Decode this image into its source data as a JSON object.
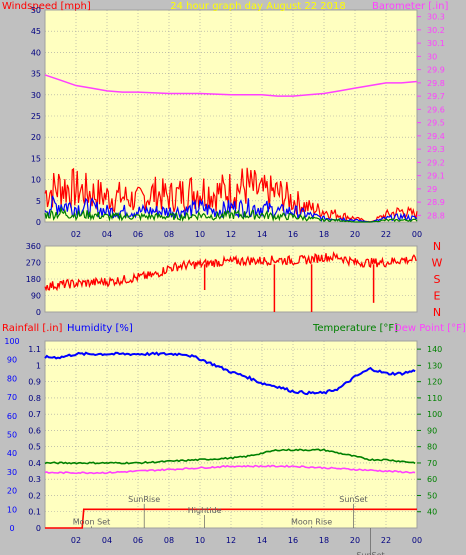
{
  "colors": {
    "background": "#c0c0c0",
    "plot_bg": "#ffffc0",
    "grid": "#a0a0a0",
    "wind_gust": "#ff0000",
    "wind_avg": "#0000ff",
    "wind_low": "#008000",
    "barometer": "#ff40ff",
    "direction": "#ff0000",
    "humidity": "#0000ff",
    "temperature": "#008000",
    "dewpoint": "#ff40ff",
    "rainfall": "#ff0000",
    "title": "#ffff00",
    "annotation": "#606060"
  },
  "chart_data": [
    {
      "type": "line",
      "title": "24 hour graph day August 22 2018",
      "left_label": "Windspeed [mph]",
      "right_label": "Barometer [.in]",
      "x_ticks": [
        "02",
        "04",
        "06",
        "08",
        "10",
        "12",
        "14",
        "16",
        "18",
        "20",
        "22",
        "00"
      ],
      "x_range": [
        0,
        24
      ],
      "y_left": {
        "range": [
          0,
          50
        ],
        "ticks": [
          "0",
          "5",
          "10",
          "15",
          "20",
          "25",
          "30",
          "35",
          "40",
          "45",
          "50"
        ]
      },
      "y_right": {
        "range": [
          28.75,
          30.35
        ],
        "ticks": [
          "28.8",
          "28.9",
          "29",
          "29.1",
          "29.2",
          "29.3",
          "29.4",
          "29.5",
          "29.6",
          "29.7",
          "29.8",
          "29.9",
          "30",
          "30.1",
          "30.2",
          "30.3"
        ]
      },
      "series": [
        {
          "role": "barometer",
          "axis": "right",
          "x": [
            0,
            1,
            2,
            3,
            4,
            5,
            6,
            8,
            10,
            12,
            14,
            15,
            16,
            17,
            18,
            19,
            20,
            21,
            22,
            23,
            24
          ],
          "y": [
            29.86,
            29.82,
            29.78,
            29.76,
            29.74,
            29.73,
            29.73,
            29.72,
            29.72,
            29.71,
            29.71,
            29.7,
            29.7,
            29.71,
            29.72,
            29.74,
            29.76,
            29.78,
            29.8,
            29.8,
            29.81
          ]
        },
        {
          "role": "wind_gust",
          "axis": "left",
          "x": [
            0,
            1,
            2,
            3,
            4,
            5,
            6,
            7,
            8,
            9,
            10,
            11,
            12,
            13,
            14,
            15,
            16,
            17,
            18,
            19,
            20,
            21,
            22,
            23,
            24
          ],
          "y": [
            8,
            10,
            9,
            8,
            7,
            7,
            6,
            8,
            7,
            8,
            9,
            8,
            9,
            10,
            8,
            8,
            6,
            4,
            3,
            2,
            1,
            0,
            2,
            3,
            2
          ]
        },
        {
          "role": "wind_avg",
          "axis": "left",
          "x": [
            0,
            1,
            2,
            3,
            4,
            5,
            6,
            7,
            8,
            9,
            10,
            11,
            12,
            13,
            14,
            15,
            16,
            17,
            18,
            19,
            20,
            21,
            22,
            23,
            24
          ],
          "y": [
            4,
            5,
            4,
            4,
            3,
            3,
            3,
            3,
            3,
            3,
            4,
            3,
            4,
            4,
            4,
            3,
            3,
            2,
            1,
            1,
            0.5,
            0,
            1,
            1.5,
            1
          ]
        },
        {
          "role": "wind_low",
          "axis": "left",
          "x": [
            0,
            1,
            2,
            3,
            4,
            5,
            6,
            7,
            8,
            9,
            10,
            11,
            12,
            13,
            14,
            15,
            16,
            17,
            18,
            19,
            20,
            21,
            22,
            23,
            24
          ],
          "y": [
            2,
            2.5,
            2,
            2,
            1.5,
            1.5,
            1.5,
            1.5,
            1.5,
            1.5,
            2,
            1.5,
            2,
            2,
            2,
            1.5,
            1.5,
            1,
            0.5,
            0.5,
            0,
            0,
            0.5,
            0.5,
            0.5
          ]
        }
      ]
    },
    {
      "type": "line",
      "right_label_letters": [
        "N",
        "W",
        "S",
        "E",
        "N"
      ],
      "x_range": [
        0,
        24
      ],
      "y_left": {
        "range": [
          0,
          360
        ],
        "ticks": [
          "0",
          "90",
          "180",
          "270",
          "360"
        ]
      },
      "series": [
        {
          "role": "direction",
          "x": [
            0,
            1,
            2,
            3,
            4,
            5,
            6,
            7,
            8,
            9,
            10,
            11,
            12,
            13,
            14,
            15,
            16,
            17,
            18,
            19,
            20,
            21,
            22,
            23,
            24
          ],
          "y": [
            140,
            150,
            155,
            160,
            165,
            175,
            190,
            200,
            240,
            255,
            260,
            270,
            275,
            280,
            280,
            285,
            280,
            285,
            300,
            300,
            270,
            270,
            270,
            285,
            285
          ]
        }
      ],
      "spikes": [
        {
          "x": 10.3,
          "y": 120
        },
        {
          "x": 14.8,
          "y": 0
        },
        {
          "x": 17.2,
          "y": 0
        },
        {
          "x": 21.2,
          "y": 50
        }
      ]
    },
    {
      "type": "line",
      "labels": {
        "rainfall": "Rainfall [.in]",
        "humidity": "Humidity [%]",
        "temperature": "Temperature [°F]",
        "dewpoint": "Dew Point [°F]"
      },
      "x_ticks": [
        "02",
        "04",
        "06",
        "08",
        "10",
        "12",
        "14",
        "16",
        "18",
        "20",
        "22",
        "00"
      ],
      "x_range": [
        0,
        24
      ],
      "y_rain": {
        "range": [
          0,
          100
        ],
        "ticks": [
          "0",
          "10",
          "20",
          "30",
          "40",
          "50",
          "60",
          "70",
          "80",
          "90",
          "100"
        ]
      },
      "y_humidity": {
        "range": [
          0,
          1.15
        ],
        "ticks": [
          "0",
          "0.1",
          "0.2",
          "0.3",
          "0.4",
          "0.5",
          "0.6",
          "0.7",
          "0.8",
          "0.9",
          "1",
          "1.1"
        ]
      },
      "y_temp": {
        "range": [
          30,
          145
        ],
        "ticks": [
          "40",
          "50",
          "60",
          "70",
          "80",
          "90",
          "100",
          "110",
          "120",
          "130",
          "140"
        ]
      },
      "series": [
        {
          "role": "humidity",
          "axis": "temp",
          "x": [
            0,
            1,
            2,
            4,
            6,
            8,
            9,
            10,
            11,
            12,
            13,
            14,
            15,
            16,
            17,
            18,
            19,
            20,
            21,
            22,
            23,
            24
          ],
          "y": [
            135,
            135,
            137,
            137,
            137,
            137,
            137,
            134,
            130,
            126,
            123,
            119,
            117,
            114,
            113,
            113,
            116,
            123,
            128,
            125,
            125,
            127
          ]
        },
        {
          "role": "temperature",
          "axis": "temp",
          "x": [
            0,
            2,
            4,
            6,
            8,
            10,
            12,
            13,
            14,
            15,
            16,
            17,
            18,
            19,
            20,
            21,
            22,
            23,
            24
          ],
          "y": [
            70,
            70,
            70,
            70,
            71,
            72,
            73,
            74,
            76,
            78,
            78,
            78,
            78,
            76,
            74,
            72,
            72,
            71,
            70
          ]
        },
        {
          "role": "dewpoint",
          "axis": "temp",
          "x": [
            0,
            2,
            4,
            6,
            8,
            10,
            12,
            14,
            16,
            18,
            20,
            22,
            24
          ],
          "y": [
            64,
            64,
            64,
            65,
            66,
            67,
            68,
            68,
            68,
            67,
            66,
            65,
            64
          ]
        },
        {
          "role": "rainfall",
          "axis": "rain",
          "x": [
            0,
            2.4,
            2.5,
            3,
            24
          ],
          "y": [
            0,
            0,
            10,
            10,
            10
          ]
        }
      ],
      "annotations": [
        {
          "text": "SunRise",
          "x": 6.4,
          "level": 14
        },
        {
          "text": "Hightide",
          "x": 10.3,
          "level": 8
        },
        {
          "text": "SunSet",
          "x": 19.9,
          "level": 14
        },
        {
          "text": "Moon Set",
          "x": 3.0,
          "level": 2
        },
        {
          "text": "Moon Rise",
          "x": 17.2,
          "level": 2
        },
        {
          "text": "SunSet",
          "x": 21.0,
          "level": -16
        }
      ]
    }
  ]
}
